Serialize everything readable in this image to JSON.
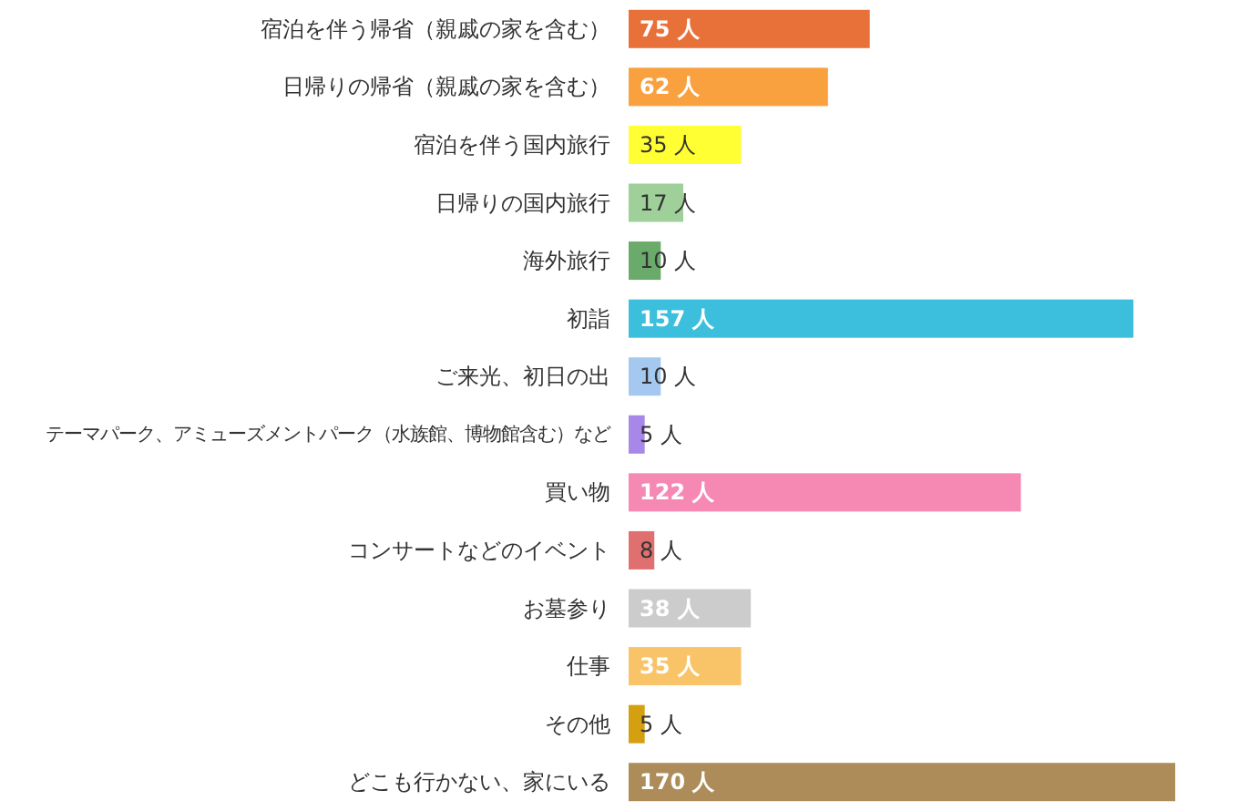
{
  "chart_data": {
    "type": "bar",
    "orientation": "horizontal",
    "categories": [
      "宿泊を伴う帰省（親戚の家を含む）",
      "日帰りの帰省（親戚の家を含む）",
      "宿泊を伴う国内旅行",
      "日帰りの国内旅行",
      "海外旅行",
      "初詣",
      "ご来光、初日の出",
      "テーマパーク、アミューズメントパーク（水族館、博物館含む）など",
      "買い物",
      "コンサートなどのイベント",
      "お墓参り",
      "仕事",
      "その他",
      "どこも行かない、家にいる"
    ],
    "values": [
      75,
      62,
      35,
      17,
      10,
      157,
      10,
      5,
      122,
      8,
      38,
      35,
      5,
      170
    ],
    "colors": [
      "#e8713a",
      "#f9a03f",
      "#ffff33",
      "#9fd09a",
      "#6aaa6a",
      "#3bbfdc",
      "#a4c8ef",
      "#a787e8",
      "#f688b4",
      "#e07070",
      "#cccccc",
      "#f9c468",
      "#d4a010",
      "#ad8c5a"
    ],
    "value_labels": [
      "75 人",
      "62 人",
      "35 人",
      "17 人",
      "10 人",
      "157 人",
      "10 人",
      "5 人",
      "122 人",
      "8 人",
      "38 人",
      "35 人",
      "5 人",
      "170 人"
    ]
  }
}
